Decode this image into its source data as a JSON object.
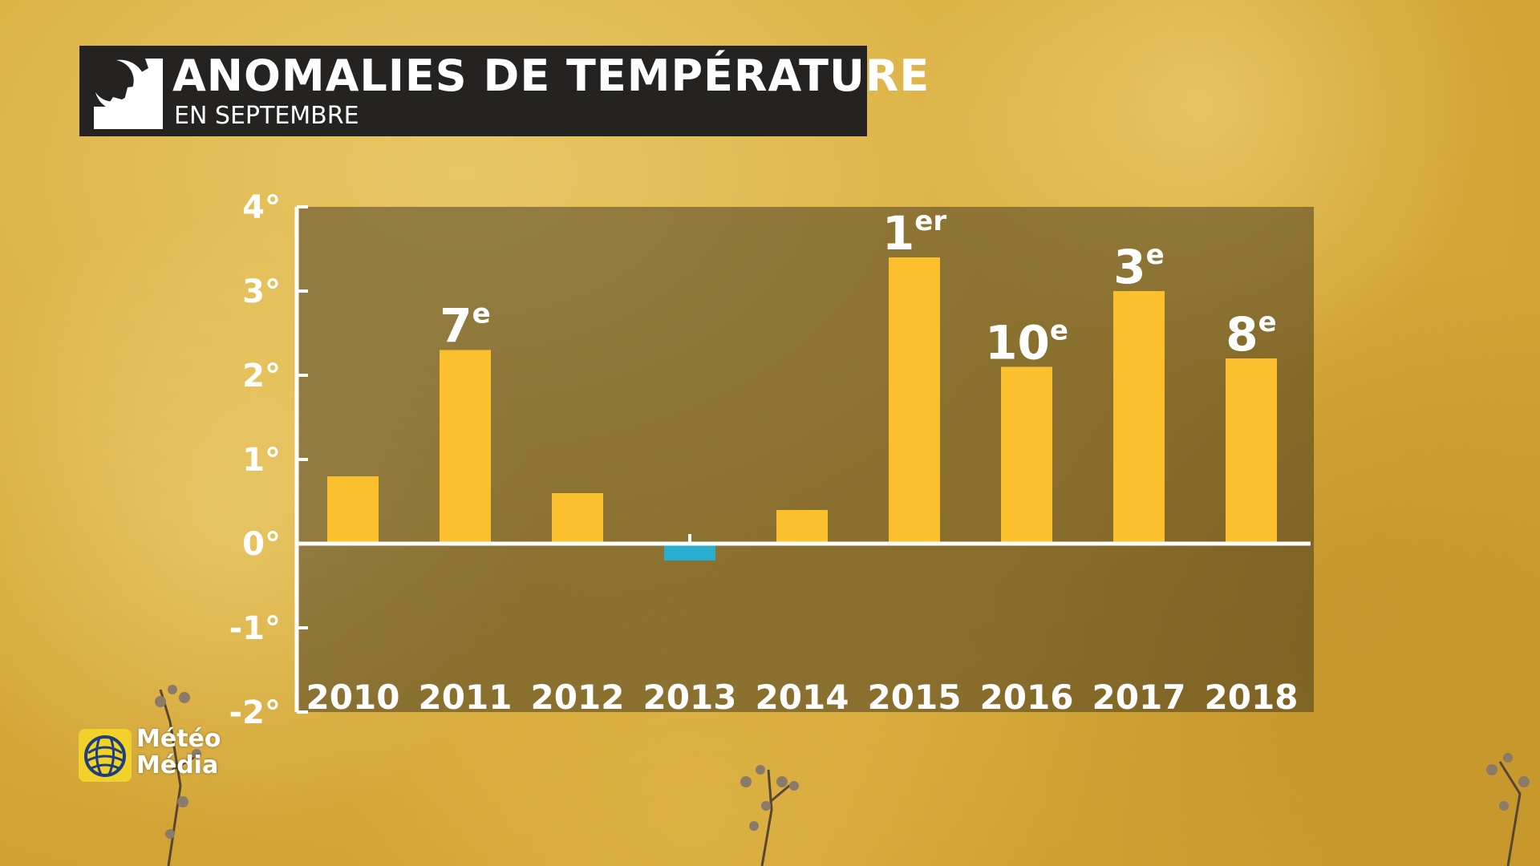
{
  "title": {
    "main": "ANOMALIES DE TEMPÉRATURE",
    "sub": "EN SEPTEMBRE"
  },
  "brand": {
    "line1": "Météo",
    "line2": "Média"
  },
  "colors": {
    "positive_bar": "#fcbf2e",
    "negative_bar": "#2aaed0",
    "panel": "#1c1a18",
    "axis": "#ffffff",
    "title_box": "#242322"
  },
  "icons": [
    "weather-sun-moon-logo",
    "meteomedia-globe-logo"
  ],
  "chart_data": {
    "type": "bar",
    "title": "ANOMALIES DE TEMPÉRATURE",
    "subtitle": "EN SEPTEMBRE",
    "categories": [
      "2010",
      "2011",
      "2012",
      "2013",
      "2014",
      "2015",
      "2016",
      "2017",
      "2018"
    ],
    "values": [
      0.8,
      2.3,
      0.6,
      -0.2,
      0.4,
      3.4,
      2.1,
      3.0,
      2.2
    ],
    "ranks": [
      {
        "year": "2011",
        "rank": "7",
        "suffix": "e"
      },
      {
        "year": "2015",
        "rank": "1",
        "suffix": "er"
      },
      {
        "year": "2016",
        "rank": "10",
        "suffix": "e"
      },
      {
        "year": "2017",
        "rank": "3",
        "suffix": "e"
      },
      {
        "year": "2018",
        "rank": "8",
        "suffix": "e"
      }
    ],
    "ylim": [
      -2,
      4
    ],
    "yticks": [
      4,
      3,
      2,
      1,
      0,
      -1,
      -2
    ],
    "ytick_labels": [
      "4°",
      "3°",
      "2°",
      "1°",
      "0°",
      "-1°",
      "-2°"
    ],
    "xlabel": "",
    "ylabel": "",
    "grid": false,
    "legend": "none"
  }
}
